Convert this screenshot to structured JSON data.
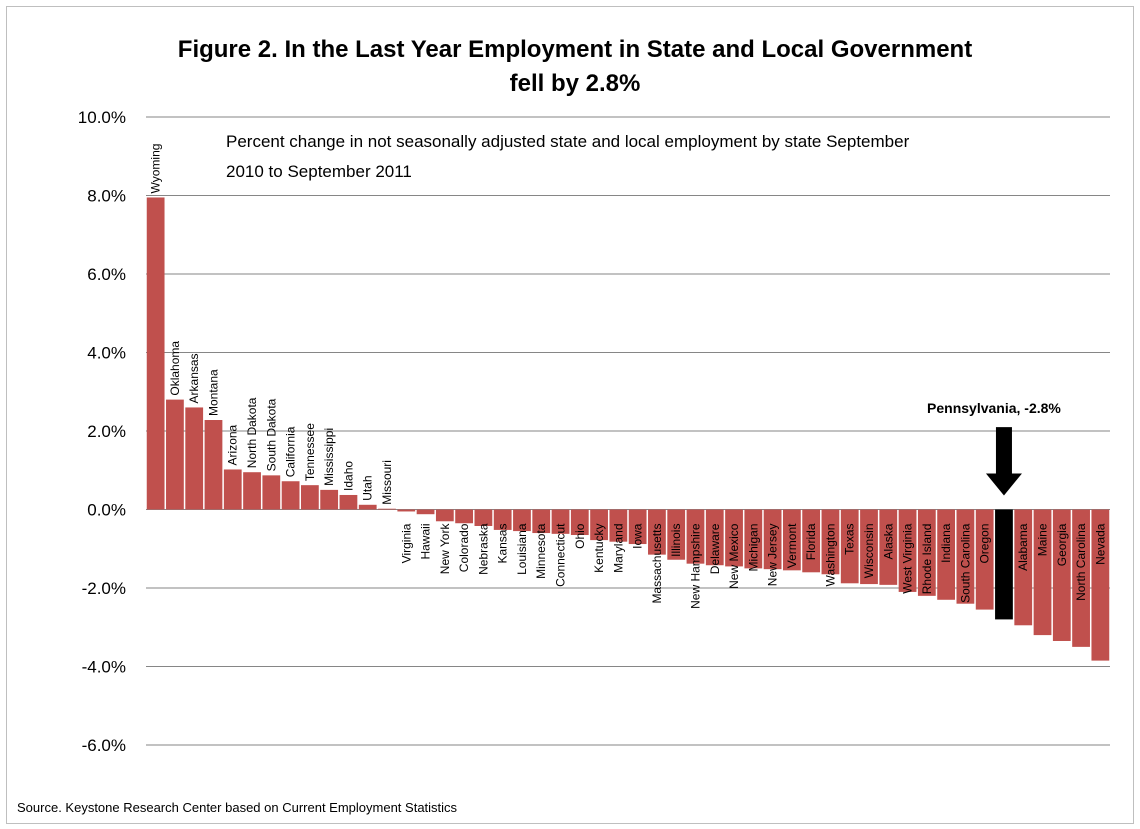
{
  "chart_data": {
    "type": "bar",
    "title": "Figure 2. In the Last Year Employment in State and Local Government fell by 2.8%",
    "title_lines": [
      "Figure 2. In the Last Year Employment in State and Local Government",
      "fell by 2.8%"
    ],
    "subtitle_lines": [
      "Percent change in not seasonally adjusted state and local employment by state September",
      "2010 to September 2011"
    ],
    "ylim": [
      -6.0,
      10.0
    ],
    "yticks": [
      "10.0%",
      "8.0%",
      "6.0%",
      "4.0%",
      "2.0%",
      "0.0%",
      "-2.0%",
      "-4.0%",
      "-6.0%"
    ],
    "ytick_values": [
      10,
      8,
      6,
      4,
      2,
      0,
      -2,
      -4,
      -6
    ],
    "grid": true,
    "categories": [
      "Wyoming",
      "Oklahoma",
      "Arkansas",
      "Montana",
      "Arizona",
      "North Dakota",
      "South Dakota",
      "California",
      "Tennessee",
      "Mississippi",
      "Idaho",
      "Utah",
      "Missouri",
      "Virginia",
      "Hawaii",
      "New York",
      "Colorado",
      "Nebraska",
      "Kansas",
      "Louisiana",
      "Minnesota",
      "Connecticut",
      "Ohio",
      "Kentucky",
      "Maryland",
      "Iowa",
      "Massachusetts",
      "Illinois",
      "New Hampshire",
      "Delaware",
      "New Mexico",
      "Michigan",
      "New Jersey",
      "Vermont",
      "Florida",
      "Washington",
      "Texas",
      "Wisconsin",
      "Alaska",
      "West Virginia",
      "Rhode Island",
      "Indiana",
      "South Carolina",
      "Oregon",
      "Pennsylvania",
      "Alabama",
      "Maine",
      "Georgia",
      "North Carolina",
      "Nevada"
    ],
    "values": [
      7.95,
      2.8,
      2.6,
      2.28,
      1.02,
      0.95,
      0.87,
      0.72,
      0.62,
      0.5,
      0.37,
      0.12,
      0.02,
      -0.05,
      -0.12,
      -0.3,
      -0.35,
      -0.42,
      -0.52,
      -0.55,
      -0.6,
      -0.62,
      -0.65,
      -0.78,
      -0.82,
      -0.88,
      -1.15,
      -1.28,
      -1.38,
      -1.42,
      -1.45,
      -1.5,
      -1.52,
      -1.55,
      -1.6,
      -1.65,
      -1.88,
      -1.9,
      -1.92,
      -2.1,
      -2.2,
      -2.3,
      -2.4,
      -2.55,
      -2.8,
      -2.95,
      -3.2,
      -3.35,
      -3.5,
      -3.85
    ],
    "highlight": "Pennsylvania",
    "colors": {
      "bar": "#c0504d",
      "highlight": "#000000",
      "grid": "#868686"
    },
    "annotation": "Pennsylvania, -2.8%",
    "source": "Source. Keystone Research Center based on Current Employment Statistics"
  }
}
